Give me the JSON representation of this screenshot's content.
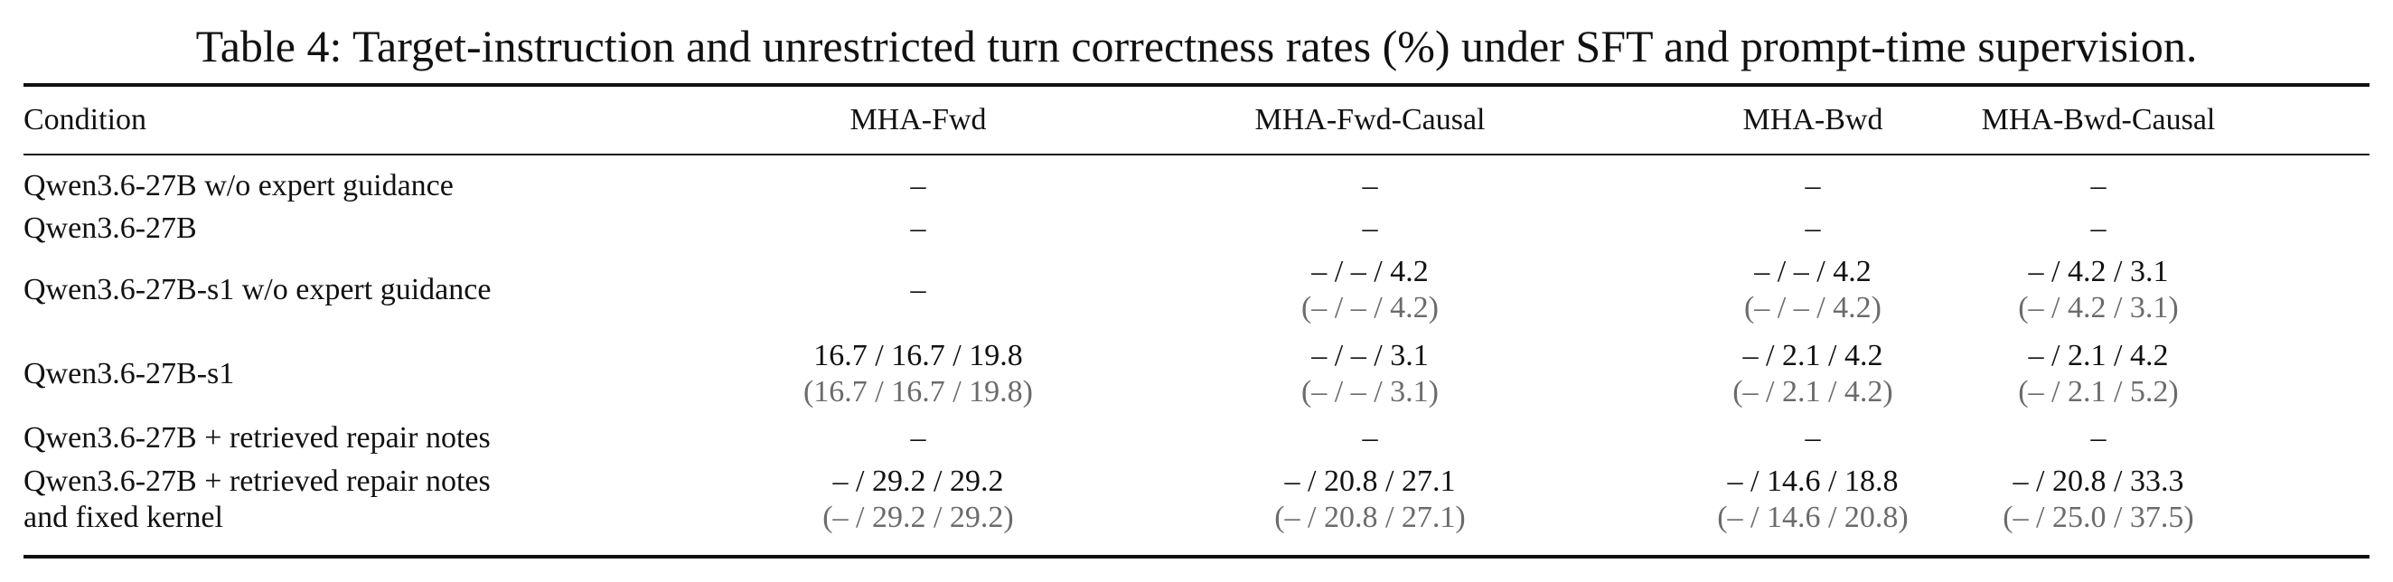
{
  "caption": "Table 4: Target-instruction and unrestricted turn correctness rates (%) under SFT and prompt-time supervision.",
  "header": {
    "condition": "Condition",
    "columns": [
      "MHA-Fwd",
      "MHA-Fwd-Causal",
      "MHA-Bwd",
      "MHA-Bwd-Causal"
    ]
  },
  "rows": [
    {
      "condition": [
        "Qwen3.6-27B w/o expert guidance"
      ],
      "cells": [
        {
          "main": "–",
          "sub": ""
        },
        {
          "main": "–",
          "sub": ""
        },
        {
          "main": "–",
          "sub": ""
        },
        {
          "main": "–",
          "sub": ""
        }
      ]
    },
    {
      "condition": [
        "Qwen3.6-27B"
      ],
      "cells": [
        {
          "main": "–",
          "sub": ""
        },
        {
          "main": "–",
          "sub": ""
        },
        {
          "main": "–",
          "sub": ""
        },
        {
          "main": "–",
          "sub": ""
        }
      ]
    },
    {
      "condition": [
        "Qwen3.6-27B-s1 w/o expert guidance"
      ],
      "cells": [
        {
          "main": "–",
          "sub": ""
        },
        {
          "main": "– / – / 4.2",
          "sub": "(– / – / 4.2)"
        },
        {
          "main": "– / – / 4.2",
          "sub": "(– / – / 4.2)"
        },
        {
          "main": "– / 4.2 / 3.1",
          "sub": "(– / 4.2 / 3.1)"
        }
      ]
    },
    {
      "condition": [
        "Qwen3.6-27B-s1"
      ],
      "cells": [
        {
          "main": "16.7 / 16.7 / 19.8",
          "sub": "(16.7 / 16.7 / 19.8)"
        },
        {
          "main": "– / – / 3.1",
          "sub": "(– / – / 3.1)"
        },
        {
          "main": "– / 2.1 / 4.2",
          "sub": "(– / 2.1 / 4.2)"
        },
        {
          "main": "– / 2.1 / 4.2",
          "sub": "(– / 2.1 / 5.2)"
        }
      ]
    },
    {
      "condition": [
        "Qwen3.6-27B + retrieved repair notes"
      ],
      "cells": [
        {
          "main": "–",
          "sub": ""
        },
        {
          "main": "–",
          "sub": ""
        },
        {
          "main": "–",
          "sub": ""
        },
        {
          "main": "–",
          "sub": ""
        }
      ]
    },
    {
      "condition": [
        "Qwen3.6-27B + retrieved repair notes",
        "and fixed kernel"
      ],
      "cells": [
        {
          "main": "– / 29.2 / 29.2",
          "sub": "(– / 29.2 / 29.2)"
        },
        {
          "main": "– / 20.8 / 27.1",
          "sub": "(– / 20.8 / 27.1)"
        },
        {
          "main": "– / 14.6 / 18.8",
          "sub": "(– / 14.6 / 20.8)"
        },
        {
          "main": "– / 20.8 / 33.3",
          "sub": "(– / 25.0 / 37.5)"
        }
      ]
    }
  ]
}
